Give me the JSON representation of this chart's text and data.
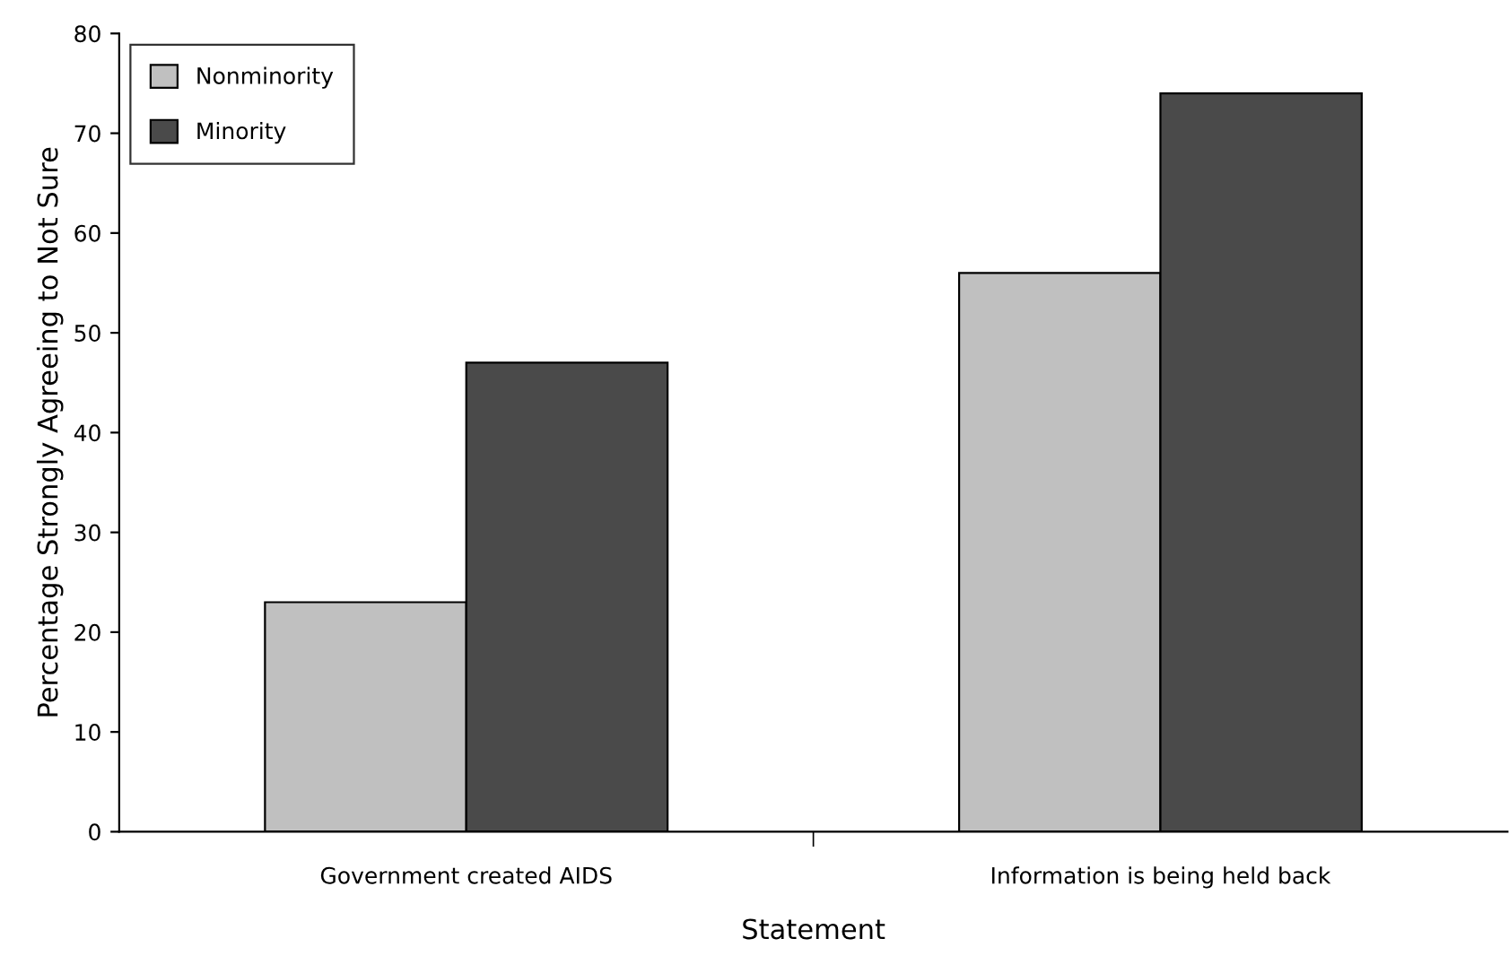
{
  "chart_data": {
    "type": "bar",
    "xlabel": "Statement",
    "ylabel": "Percentage Strongly Agreeing to Not Sure",
    "categories": [
      "Government created AIDS",
      "Information is being held back"
    ],
    "series": [
      {
        "name": "Nonminority",
        "color": "#c0c0c0",
        "values": [
          23,
          56
        ]
      },
      {
        "name": "Minority",
        "color": "#4a4a4a",
        "values": [
          47,
          74
        ]
      }
    ],
    "ylim": [
      0,
      80
    ],
    "yticks": [
      0,
      10,
      20,
      30,
      40,
      50,
      60,
      70,
      80
    ],
    "grid": false,
    "legend": "top left"
  }
}
